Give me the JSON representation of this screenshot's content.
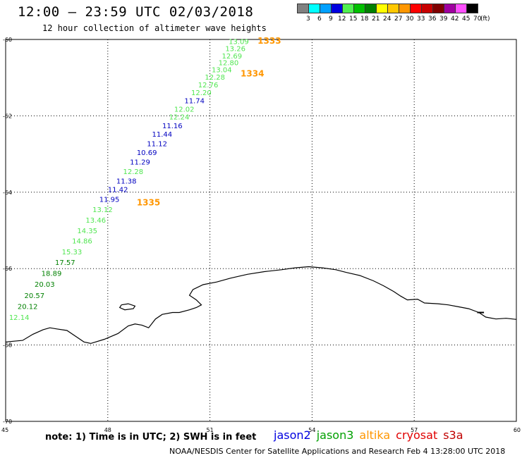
{
  "header": {
    "title": "12:00 – 23:59 UTC 02/03/2018",
    "subtitle": "12 hour collection of altimeter wave heights"
  },
  "legend": {
    "unit": "(ft)",
    "items": [
      {
        "label": "3",
        "color": "#808080"
      },
      {
        "label": "6",
        "color": "#00ffff"
      },
      {
        "label": "9",
        "color": "#00a0ff"
      },
      {
        "label": "12",
        "color": "#0000e0"
      },
      {
        "label": "15",
        "color": "#50f050"
      },
      {
        "label": "18",
        "color": "#00c000"
      },
      {
        "label": "21",
        "color": "#008000"
      },
      {
        "label": "24",
        "color": "#ffff00"
      },
      {
        "label": "27",
        "color": "#ffc800"
      },
      {
        "label": "30",
        "color": "#ff9600"
      },
      {
        "label": "33",
        "color": "#ff0000"
      },
      {
        "label": "36",
        "color": "#c80000"
      },
      {
        "label": "39",
        "color": "#800000"
      },
      {
        "label": "42",
        "color": "#a000a0"
      },
      {
        "label": "45",
        "color": "#ff50ff"
      },
      {
        "label": "70",
        "color": "#000000"
      }
    ]
  },
  "map": {
    "lon_range": [
      45,
      60
    ],
    "lat_range": [
      -70,
      -60
    ],
    "lon_ticks": [
      {
        "value": 45,
        "label": "45"
      },
      {
        "value": 48,
        "label": "48"
      },
      {
        "value": 51,
        "label": "51"
      },
      {
        "value": 54,
        "label": "54"
      },
      {
        "value": 57,
        "label": "57"
      },
      {
        "value": 60,
        "label": "60"
      }
    ],
    "lat_ticks": [
      {
        "value": -60,
        "label": "-60"
      },
      {
        "value": -62,
        "label": "-62"
      },
      {
        "value": -64,
        "label": "-64"
      },
      {
        "value": -66,
        "label": "-66"
      },
      {
        "value": -68,
        "label": "-68"
      },
      {
        "value": -70,
        "label": "-70"
      }
    ],
    "colors": {
      "green": "#50e650",
      "darkgreen": "#008000",
      "blue": "#0000c0",
      "orange": "#ff9600"
    },
    "measurements": [
      {
        "lon": 51.55,
        "lat": -60.05,
        "text": "13.09",
        "color": "green"
      },
      {
        "lon": 51.45,
        "lat": -60.23,
        "text": "13.26",
        "color": "green"
      },
      {
        "lon": 51.35,
        "lat": -60.42,
        "text": "12.69",
        "color": "green"
      },
      {
        "lon": 51.25,
        "lat": -60.6,
        "text": "12.80",
        "color": "green"
      },
      {
        "lon": 51.05,
        "lat": -60.78,
        "text": "13.04",
        "color": "green"
      },
      {
        "lon": 50.85,
        "lat": -60.98,
        "text": "12.28",
        "color": "green"
      },
      {
        "lon": 50.65,
        "lat": -61.18,
        "text": "12.76",
        "color": "green"
      },
      {
        "lon": 50.45,
        "lat": -61.38,
        "text": "12.20",
        "color": "green"
      },
      {
        "lon": 50.25,
        "lat": -61.6,
        "text": "11.74",
        "color": "blue"
      },
      {
        "lon": 49.95,
        "lat": -61.82,
        "text": "12.02",
        "color": "green"
      },
      {
        "lon": 49.8,
        "lat": -62.02,
        "text": "12.24",
        "color": "green"
      },
      {
        "lon": 49.6,
        "lat": -62.25,
        "text": "11.16",
        "color": "blue"
      },
      {
        "lon": 49.3,
        "lat": -62.47,
        "text": "11.44",
        "color": "blue"
      },
      {
        "lon": 49.15,
        "lat": -62.72,
        "text": "11.12",
        "color": "blue"
      },
      {
        "lon": 48.85,
        "lat": -62.95,
        "text": "10.69",
        "color": "blue"
      },
      {
        "lon": 48.65,
        "lat": -63.2,
        "text": "11.29",
        "color": "blue"
      },
      {
        "lon": 48.45,
        "lat": -63.45,
        "text": "12.28",
        "color": "green"
      },
      {
        "lon": 48.25,
        "lat": -63.7,
        "text": "11.38",
        "color": "blue"
      },
      {
        "lon": 48.0,
        "lat": -63.92,
        "text": "11.42",
        "color": "blue"
      },
      {
        "lon": 47.75,
        "lat": -64.18,
        "text": "11.95",
        "color": "blue"
      },
      {
        "lon": 47.55,
        "lat": -64.45,
        "text": "13.12",
        "color": "green"
      },
      {
        "lon": 47.35,
        "lat": -64.72,
        "text": "13.46",
        "color": "green"
      },
      {
        "lon": 47.1,
        "lat": -65.0,
        "text": "14.35",
        "color": "green"
      },
      {
        "lon": 46.95,
        "lat": -65.27,
        "text": "14.86",
        "color": "green"
      },
      {
        "lon": 46.65,
        "lat": -65.55,
        "text": "15.33",
        "color": "green"
      },
      {
        "lon": 46.45,
        "lat": -65.83,
        "text": "17.57",
        "color": "darkgreen"
      },
      {
        "lon": 46.05,
        "lat": -66.12,
        "text": "18.89",
        "color": "darkgreen"
      },
      {
        "lon": 45.85,
        "lat": -66.4,
        "text": "20.03",
        "color": "darkgreen"
      },
      {
        "lon": 45.55,
        "lat": -66.7,
        "text": "20.57",
        "color": "darkgreen"
      },
      {
        "lon": 45.35,
        "lat": -66.98,
        "text": "20.12",
        "color": "darkgreen"
      },
      {
        "lon": 45.1,
        "lat": -67.27,
        "text": "12.14",
        "color": "green"
      }
    ],
    "passes": [
      {
        "lon": 52.4,
        "lat": -60.02,
        "text": "1333"
      },
      {
        "lon": 51.9,
        "lat": -60.88,
        "text": "1334"
      },
      {
        "lon": 48.85,
        "lat": -64.25,
        "text": "1335"
      }
    ],
    "coast": [
      [
        45.0,
        -67.92
      ],
      [
        45.5,
        -67.88
      ],
      [
        45.8,
        -67.72
      ],
      [
        46.1,
        -67.6
      ],
      [
        46.3,
        -67.55
      ],
      [
        46.5,
        -67.58
      ],
      [
        46.8,
        -67.62
      ],
      [
        47.1,
        -67.8
      ],
      [
        47.3,
        -67.92
      ],
      [
        47.5,
        -67.96
      ],
      [
        47.9,
        -67.85
      ],
      [
        48.3,
        -67.7
      ],
      [
        48.6,
        -67.5
      ],
      [
        48.8,
        -67.45
      ],
      [
        49.0,
        -67.48
      ],
      [
        49.2,
        -67.55
      ],
      [
        49.4,
        -67.32
      ],
      [
        49.6,
        -67.2
      ],
      [
        49.9,
        -67.15
      ],
      [
        50.1,
        -67.15
      ],
      [
        50.4,
        -67.08
      ],
      [
        50.6,
        -67.02
      ],
      [
        50.75,
        -66.95
      ],
      [
        50.6,
        -66.82
      ],
      [
        50.4,
        -66.7
      ],
      [
        50.5,
        -66.55
      ],
      [
        50.8,
        -66.42
      ],
      [
        51.2,
        -66.35
      ],
      [
        51.6,
        -66.25
      ],
      [
        52.1,
        -66.15
      ],
      [
        52.6,
        -66.08
      ],
      [
        53.1,
        -66.03
      ],
      [
        53.5,
        -65.98
      ],
      [
        53.9,
        -65.95
      ],
      [
        54.3,
        -65.98
      ],
      [
        54.7,
        -66.03
      ],
      [
        55.0,
        -66.1
      ],
      [
        55.4,
        -66.18
      ],
      [
        55.8,
        -66.32
      ],
      [
        56.1,
        -66.45
      ],
      [
        56.4,
        -66.6
      ],
      [
        56.6,
        -66.72
      ],
      [
        56.8,
        -66.82
      ],
      [
        57.1,
        -66.8
      ],
      [
        57.3,
        -66.9
      ],
      [
        57.7,
        -66.92
      ],
      [
        58.0,
        -66.95
      ],
      [
        58.3,
        -67.0
      ],
      [
        58.6,
        -67.05
      ],
      [
        58.9,
        -67.15
      ],
      [
        59.1,
        -67.27
      ],
      [
        59.4,
        -67.32
      ],
      [
        59.7,
        -67.3
      ],
      [
        60.0,
        -67.33
      ]
    ],
    "island": [
      [
        48.4,
        -66.95
      ],
      [
        48.6,
        -66.92
      ],
      [
        48.8,
        -66.98
      ],
      [
        48.75,
        -67.05
      ],
      [
        48.5,
        -67.08
      ],
      [
        48.35,
        -67.02
      ],
      [
        48.4,
        -66.95
      ]
    ],
    "islet": [
      [
        58.85,
        -67.15
      ],
      [
        59.05,
        -67.15
      ]
    ]
  },
  "footer": {
    "note": "note: 1) Time is in UTC; 2) SWH is in feet",
    "satellites": [
      {
        "label": "jason2",
        "color": "#0000e0"
      },
      {
        "label": "jason3",
        "color": "#00a000"
      },
      {
        "label": "altika",
        "color": "#ff9600"
      },
      {
        "label": "cryosat",
        "color": "#e00000"
      },
      {
        "label": "s3a",
        "color": "#c00000"
      }
    ],
    "credit": "NOAA/NESDIS Center for Satellite Applications and Research    Feb  4 13:28:00 UTC 2018"
  }
}
